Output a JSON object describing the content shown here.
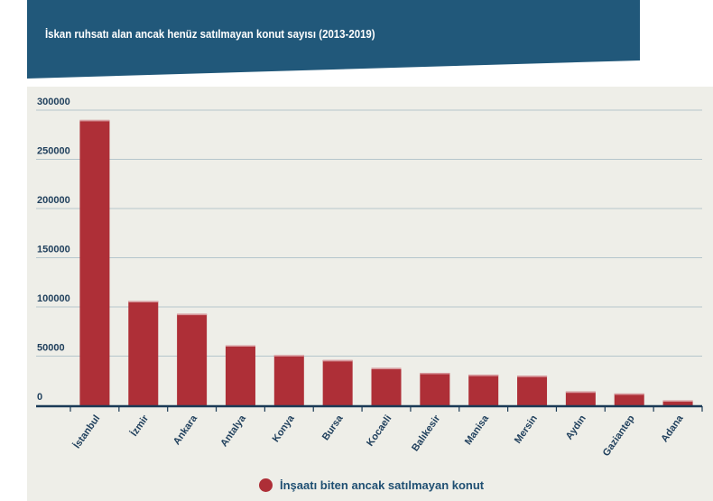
{
  "chart_data": {
    "type": "bar",
    "title": "İskan ruhsatı alan ancak henüz satılmayan konut sayısı (2013-2019)",
    "categories": [
      "İstanbul",
      "İzmir",
      "Ankara",
      "Antalya",
      "Konya",
      "Bursa",
      "Kocaeli",
      "Balıkesir",
      "Manisa",
      "Mersin",
      "Aydın",
      "Gaziantep",
      "Adana"
    ],
    "series": [
      {
        "name": "İnşaatı biten ancak satılmayan konut",
        "values": [
          290000,
          106000,
          93000,
          61000,
          51000,
          46000,
          38000,
          33000,
          31000,
          30000,
          14000,
          12000,
          5000
        ]
      }
    ],
    "yticks": [
      "0",
      "50000",
      "100000",
      "150000",
      "200000",
      "250000",
      "300000"
    ],
    "ylim": [
      0,
      300000
    ],
    "xlabel": "",
    "ylabel": "",
    "grid": true,
    "legend": "bottom-center",
    "colors": {
      "bar": "#ae2f37",
      "banner": "#21587a",
      "text": "#1f3f5c"
    }
  }
}
